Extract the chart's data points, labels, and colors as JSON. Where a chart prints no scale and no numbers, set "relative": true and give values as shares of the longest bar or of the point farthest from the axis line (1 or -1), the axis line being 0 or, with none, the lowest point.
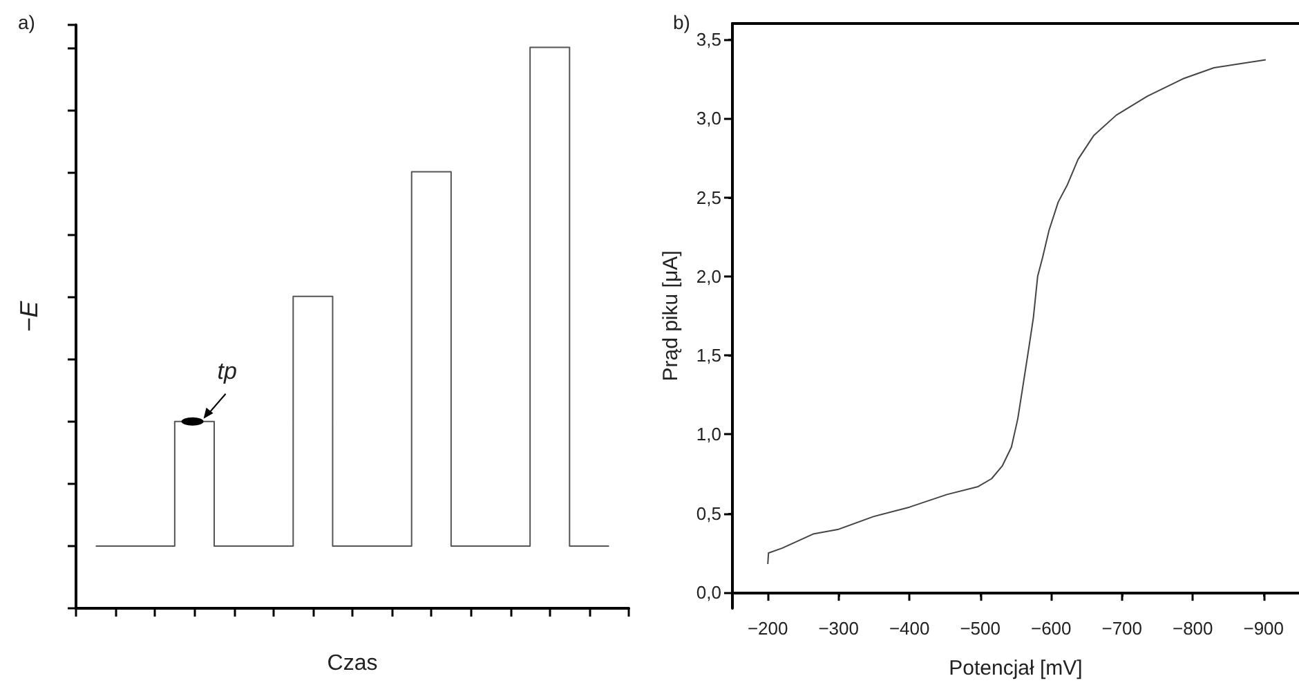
{
  "chart_data": [
    {
      "type": "step",
      "title": "a)",
      "xlabel": "Czas",
      "ylabel": "−E",
      "relative": true,
      "categories": [
        null,
        null,
        null,
        null,
        null,
        null,
        null,
        null,
        null,
        null,
        null,
        null,
        null,
        null
      ],
      "series": [
        {
          "color": "#555555",
          "values": [
            0.111,
            0.111,
            0.333,
            0.111,
            0.111,
            0.556,
            0.111,
            0.111,
            0.778,
            0.111,
            0.111,
            1,
            0.111,
            0.111
          ]
        }
      ],
      "annotations": [
        "tp"
      ]
    },
    {
      "type": "line",
      "title": "b)",
      "xlabel": "Potencjał [mV]",
      "ylabel": "Prąd piku [μA]",
      "xlim": [
        -150,
        -950
      ],
      "xticks": [
        {
          "value": -200,
          "label": "−200"
        },
        {
          "value": -300,
          "label": "−300"
        },
        {
          "value": -400,
          "label": "−400"
        },
        {
          "value": -500,
          "label": "−500"
        },
        {
          "value": -600,
          "label": "−600"
        },
        {
          "value": -700,
          "label": "−700"
        },
        {
          "value": -800,
          "label": "−800"
        },
        {
          "value": -900,
          "label": "−900"
        }
      ],
      "ylim": [
        -0.1,
        3.6
      ],
      "yticks": [
        {
          "value": 0,
          "label": "0,0"
        },
        {
          "value": 0.5,
          "label": "0,5"
        },
        {
          "value": 1,
          "label": "1,0"
        },
        {
          "value": 1.5,
          "label": "1,5"
        },
        {
          "value": 2,
          "label": "2,0"
        },
        {
          "value": 2.5,
          "label": "2,5"
        },
        {
          "value": 3,
          "label": "3,0"
        },
        {
          "value": 3.5,
          "label": "3,5"
        }
      ],
      "series": [
        {
          "color": "#444444",
          "x": [
            -200,
            -201,
            -220,
            -264,
            -300,
            -349,
            -400,
            -453,
            -497,
            -516,
            -531,
            -544,
            -553,
            -560,
            -569,
            -575,
            -581,
            -588,
            -597,
            -610,
            -623,
            -638,
            -660,
            -692,
            -736,
            -786,
            -830,
            -903
          ],
          "values": [
            0.18,
            0.25,
            0.28,
            0.37,
            0.4,
            0.48,
            0.54,
            0.62,
            0.67,
            0.72,
            0.8,
            0.92,
            1.1,
            1.3,
            1.56,
            1.74,
            2.0,
            2.12,
            2.29,
            2.47,
            2.58,
            2.74,
            2.89,
            3.02,
            3.14,
            3.25,
            3.32,
            3.37
          ]
        }
      ]
    }
  ]
}
